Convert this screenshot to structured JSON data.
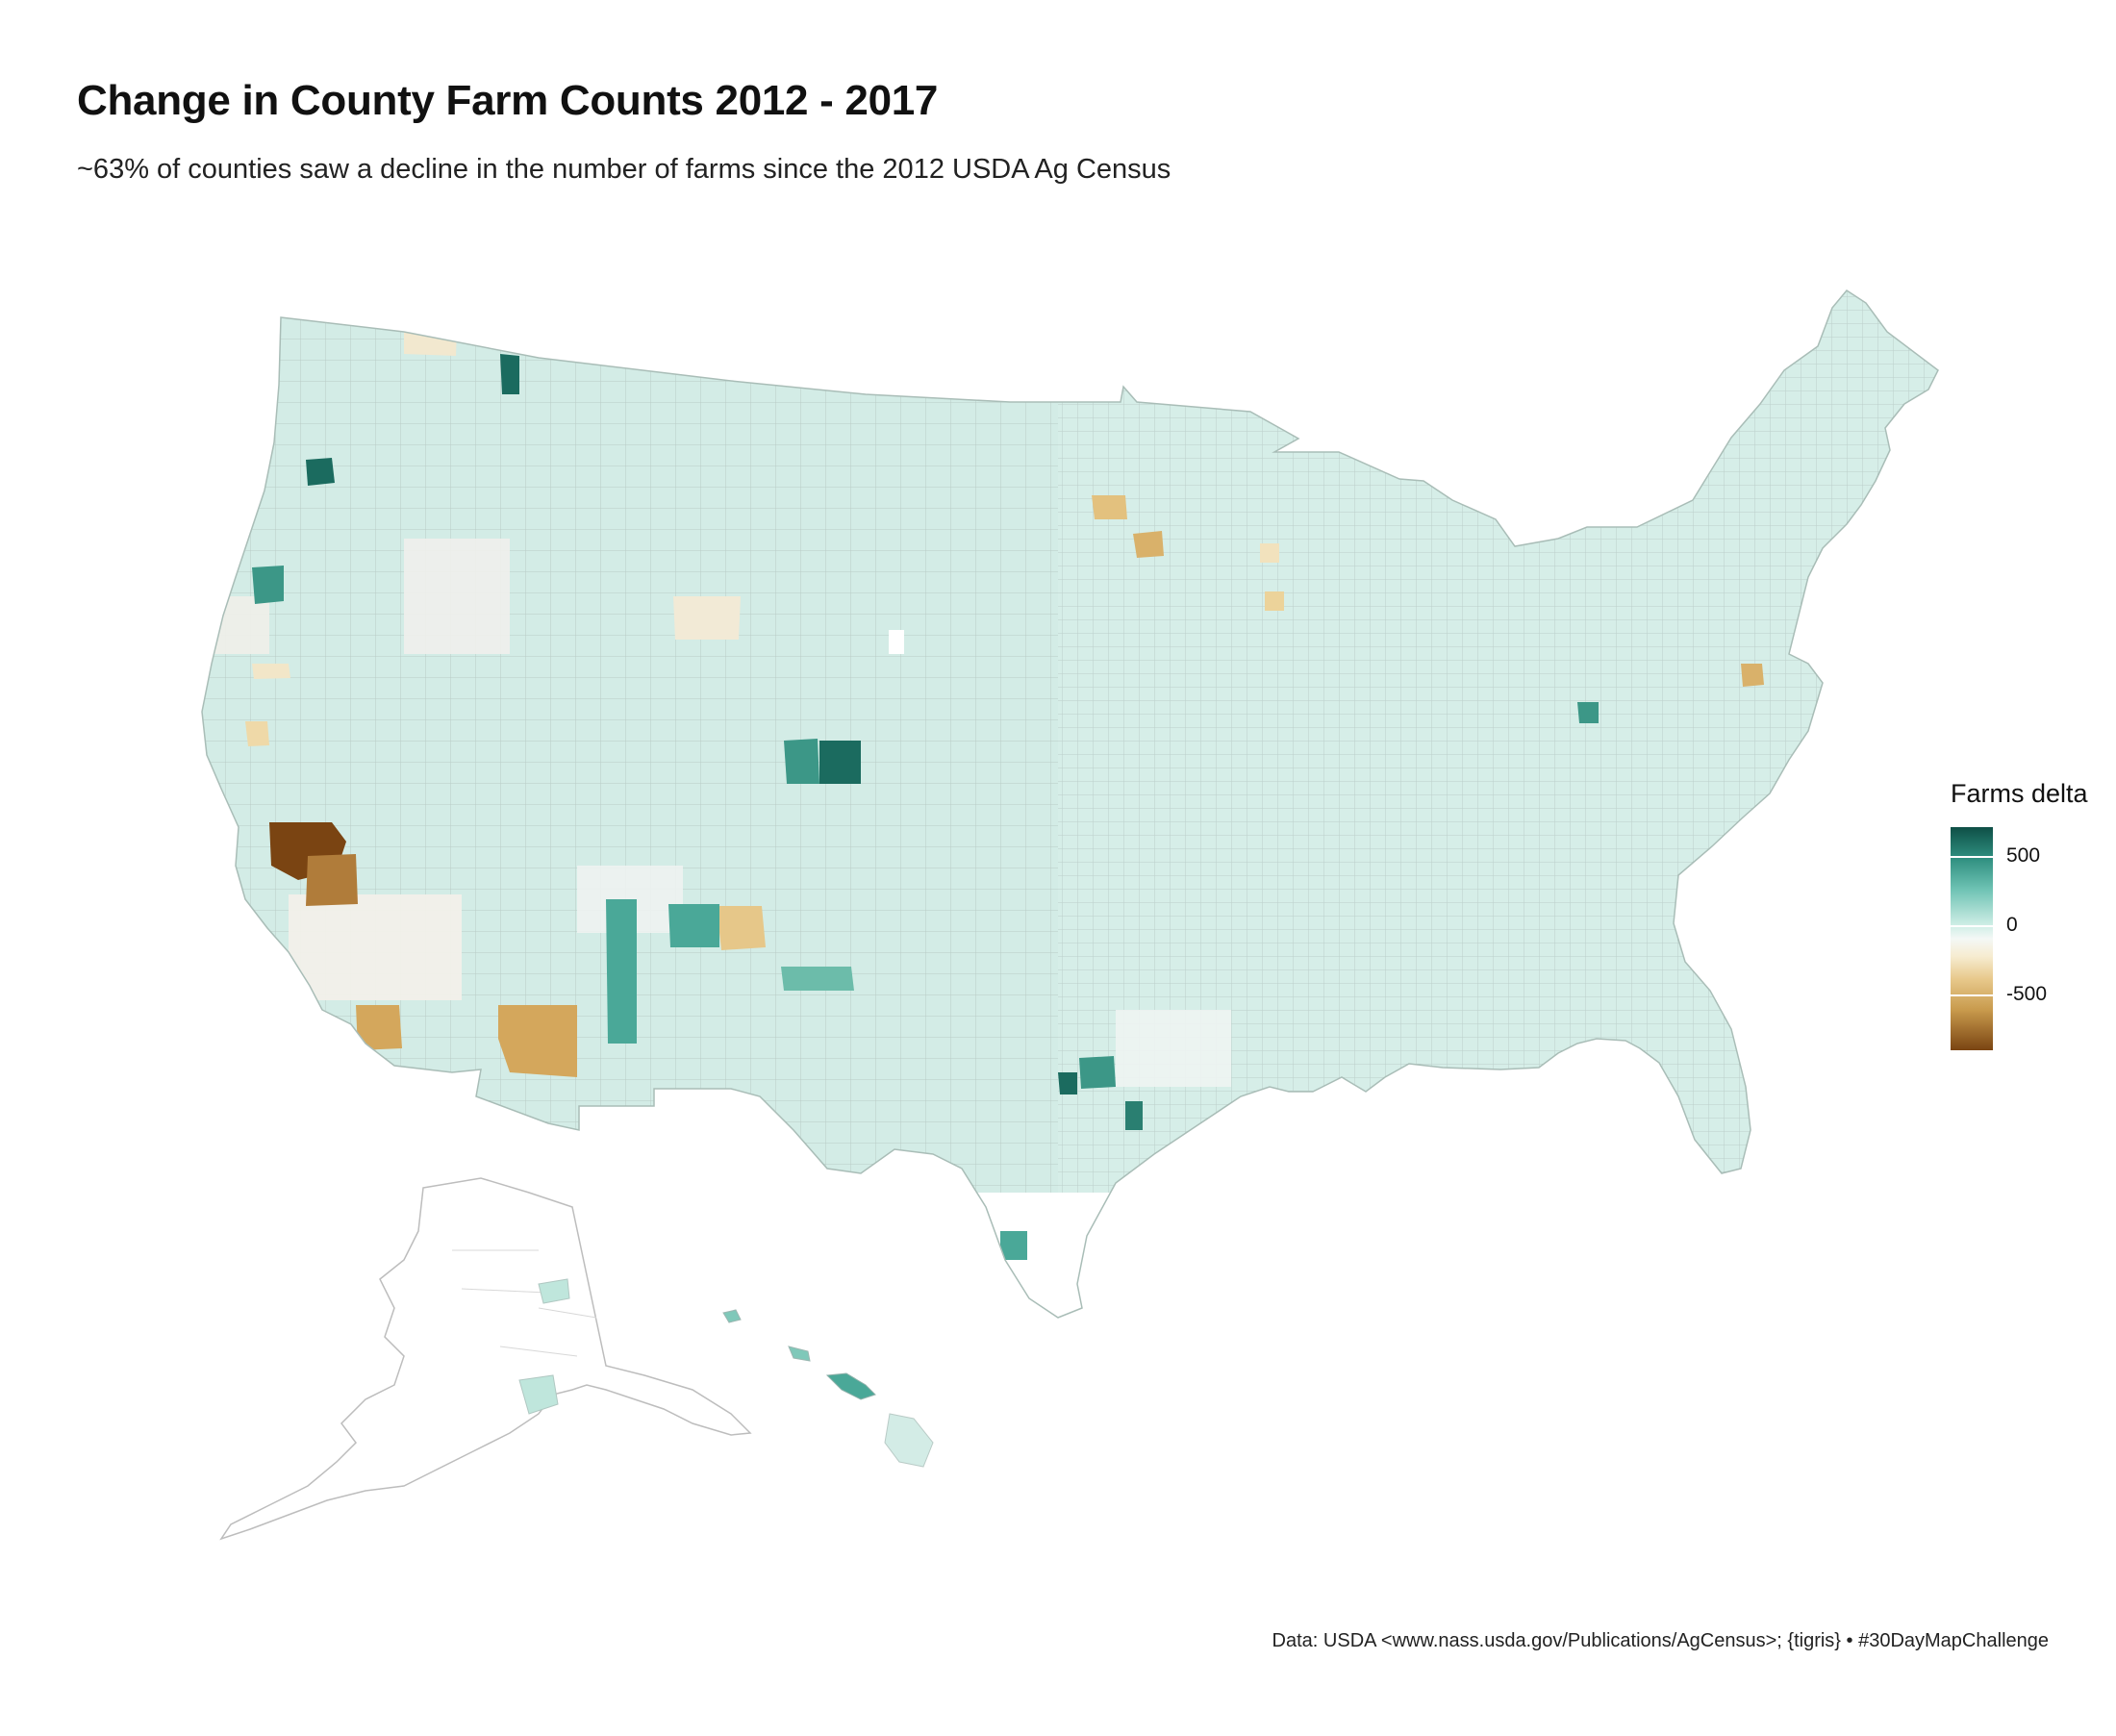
{
  "title": "Change in County Farm Counts 2012 - 2017",
  "subtitle": "~63% of counties saw a decline in the number of farms since the 2012 USDA Ag Census",
  "caption": "Data: USDA <www.nass.usda.gov/Publications/AgCensus>; {tigris} • #30DayMapChallenge",
  "legend": {
    "title": "Farms delta",
    "ticks": [
      {
        "label": "500",
        "value": 500
      },
      {
        "label": "0",
        "value": 0
      },
      {
        "label": "-500",
        "value": -500
      }
    ],
    "range": [
      -900,
      650
    ]
  },
  "colors": {
    "strong_gain": "#1b6b5f",
    "gain": "#4aa898",
    "mild_gain": "#d3ece6",
    "neutral": "#eeeeea",
    "mild_loss": "#efe2c2",
    "loss": "#d4a75c",
    "strong_loss": "#7a4412",
    "boundary": "#b9cbc6"
  },
  "chart_data": {
    "type": "choropleth",
    "variable": "Farms delta"
  }
}
